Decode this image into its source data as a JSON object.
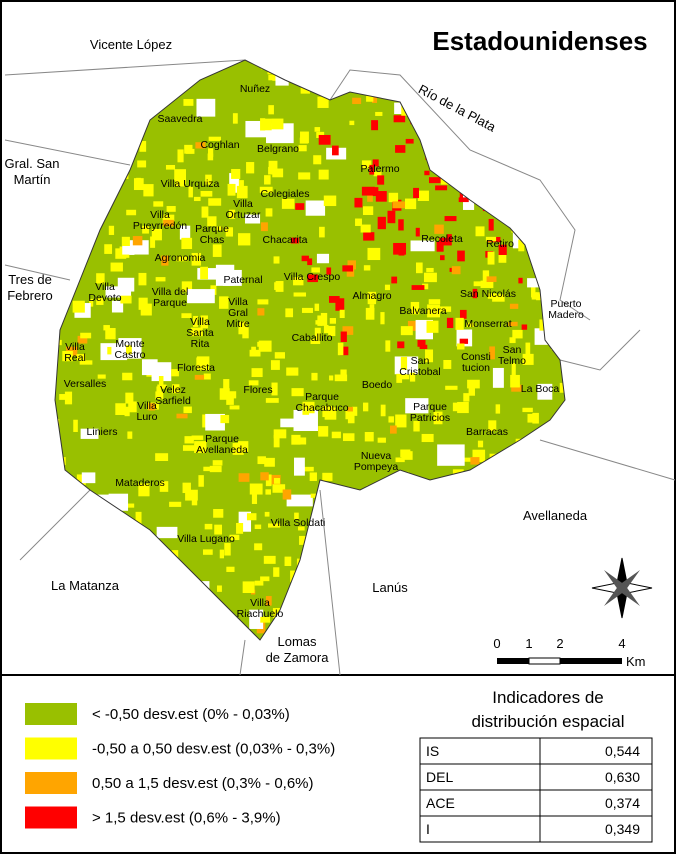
{
  "title": "Estadounidenses",
  "places": [
    {
      "lines": [
        "Nuñez"
      ]
    },
    {
      "lines": [
        "Saavedra"
      ]
    },
    {
      "lines": [
        "Coghlan"
      ]
    },
    {
      "lines": [
        "Belgrano"
      ]
    },
    {
      "lines": [
        "Palermo"
      ]
    },
    {
      "lines": [
        "Villa Urquiza"
      ]
    },
    {
      "lines": [
        "Colegiales"
      ]
    },
    {
      "lines": [
        "Villa",
        "Ortuzar"
      ]
    },
    {
      "lines": [
        "Villa",
        "Pueyrredón"
      ]
    },
    {
      "lines": [
        "Parque",
        "Chas"
      ]
    },
    {
      "lines": [
        "Chacarita"
      ]
    },
    {
      "lines": [
        "Recoleta"
      ]
    },
    {
      "lines": [
        "Retiro"
      ]
    },
    {
      "lines": [
        "Agronomia"
      ]
    },
    {
      "lines": [
        "Paternal"
      ]
    },
    {
      "lines": [
        "Villa Crespo"
      ]
    },
    {
      "lines": [
        "Villa",
        "Devoto"
      ]
    },
    {
      "lines": [
        "Villa del",
        "Parque"
      ]
    },
    {
      "lines": [
        "Villa",
        "Gral",
        "Mitre"
      ]
    },
    {
      "lines": [
        "Almagro"
      ]
    },
    {
      "lines": [
        "San Nicolás"
      ]
    },
    {
      "lines": [
        "Puerto",
        "Madero"
      ]
    },
    {
      "lines": [
        "Balvanera"
      ]
    },
    {
      "lines": [
        "Monserrat"
      ]
    },
    {
      "lines": [
        "Villa",
        "Santa",
        "Rita"
      ]
    },
    {
      "lines": [
        "Caballito"
      ]
    },
    {
      "lines": [
        "Villa",
        "Real"
      ]
    },
    {
      "lines": [
        "Monte",
        "Castro"
      ]
    },
    {
      "lines": [
        "San",
        "Telmo"
      ]
    },
    {
      "lines": [
        "Consti",
        "tucion"
      ]
    },
    {
      "lines": [
        "San",
        "Cristobal"
      ]
    },
    {
      "lines": [
        "Floresta"
      ]
    },
    {
      "lines": [
        "Versalles"
      ]
    },
    {
      "lines": [
        "Velez",
        "Sarfield"
      ]
    },
    {
      "lines": [
        "Flores"
      ]
    },
    {
      "lines": [
        "Boedo"
      ]
    },
    {
      "lines": [
        "La Boca"
      ]
    },
    {
      "lines": [
        "Parque",
        "Chacabuco"
      ]
    },
    {
      "lines": [
        "Villa",
        "Luro"
      ]
    },
    {
      "lines": [
        "Parque",
        "Patricios"
      ]
    },
    {
      "lines": [
        "Liniers"
      ]
    },
    {
      "lines": [
        "Barracas"
      ]
    },
    {
      "lines": [
        "Parque",
        "Avellaneda"
      ]
    },
    {
      "lines": [
        "Nueva",
        "Pompeya"
      ]
    },
    {
      "lines": [
        "Mataderos"
      ]
    },
    {
      "lines": [
        "Villa Soldati"
      ]
    },
    {
      "lines": [
        "Villa Lugano"
      ]
    },
    {
      "lines": [
        "Villa",
        "Riachuelo"
      ]
    }
  ],
  "outside": [
    {
      "lines": [
        "Vicente López"
      ]
    },
    {
      "lines": [
        "Río de la Plata"
      ]
    },
    {
      "lines": [
        "Gral. San",
        "Martín"
      ]
    },
    {
      "lines": [
        "Tres de",
        "Febrero"
      ]
    },
    {
      "lines": [
        "Avellaneda"
      ]
    },
    {
      "lines": [
        "La Matanza"
      ]
    },
    {
      "lines": [
        "Lanús"
      ]
    },
    {
      "lines": [
        "Lomas",
        "de Zamora"
      ]
    }
  ],
  "scale": {
    "ticks": [
      "0",
      "1",
      "2",
      "4"
    ],
    "unit": "Km"
  },
  "legend": [
    {
      "label": "< -0,50 desv.est (0% - 0,03%)",
      "color": "#99c000"
    },
    {
      "label": "-0,50 a 0,50 desv.est (0,03% - 0,3%)",
      "color": "#ffff00"
    },
    {
      "label": "0,50 a 1,5 desv.est (0,3% - 0,6%)",
      "color": "#ffa500"
    },
    {
      "label": "> 1,5 desv.est (0,6% - 3,9%)",
      "color": "#ff0000"
    }
  ],
  "indicators": {
    "title_lines": [
      "Indicadores de",
      "distribución espacial"
    ],
    "rows": [
      [
        "IS",
        "0,544"
      ],
      [
        "DEL",
        "0,630"
      ],
      [
        "ACE",
        "0,374"
      ],
      [
        "I",
        "0,349"
      ]
    ]
  }
}
